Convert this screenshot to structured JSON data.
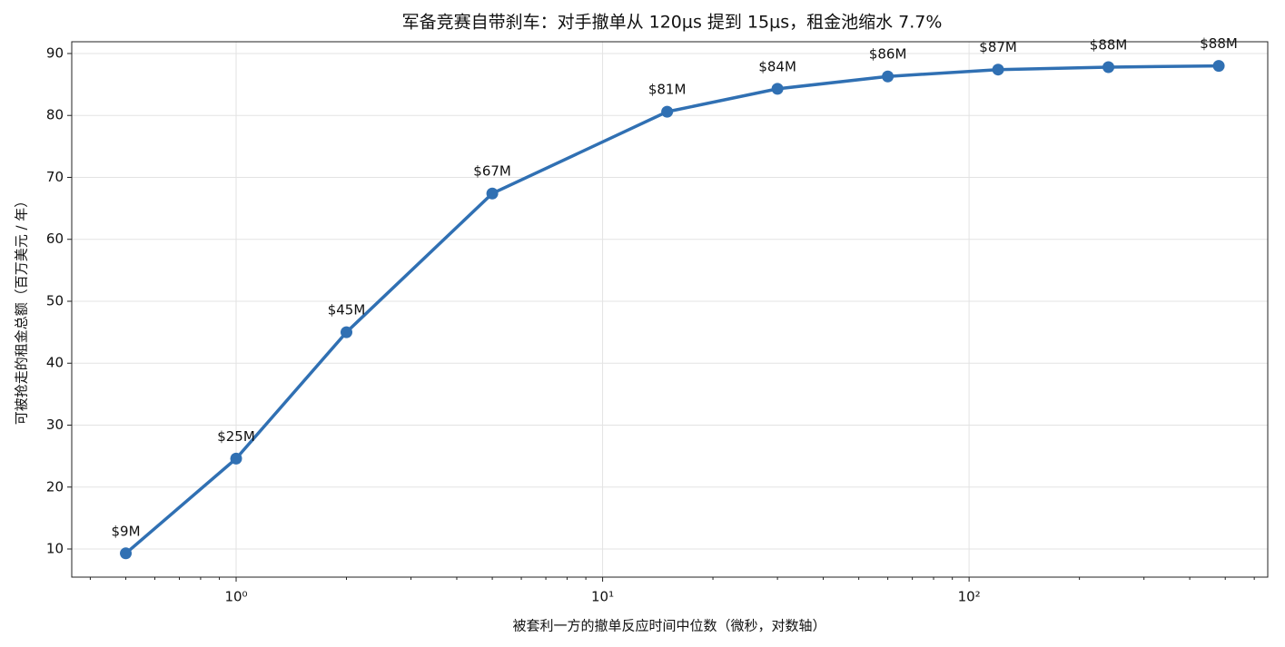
{
  "chart_data": {
    "type": "line",
    "title": "军备竞赛自带刹车：对手撤单从 120μs 提到 15μs，租金池缩水 7.7%",
    "x_label": "被套利一方的撤单反应时间中位数（微秒，对数轴）",
    "y_label": "可被抢走的租金总额（百万美元 / 年）",
    "x": [
      0.5,
      1,
      2,
      5,
      15,
      30,
      60,
      120,
      240,
      480
    ],
    "series": [
      {
        "color": "#3070b3",
        "values": [
          9.3,
          24.6,
          45.0,
          67.4,
          80.6,
          84.3,
          86.3,
          87.4,
          87.8,
          88.0
        ],
        "value_labels": [
          "$9M",
          "$25M",
          "$45M",
          "$67M",
          "$81M",
          "$84M",
          "$86M",
          "$87M",
          "$88M",
          "$88M"
        ]
      }
    ],
    "xscale": "log",
    "xlim": [
      0.356,
      653
    ],
    "xticks": [
      {
        "value": 1,
        "label": "10⁰"
      },
      {
        "value": 10,
        "label": "10¹"
      },
      {
        "value": 100,
        "label": "10²"
      }
    ],
    "xminorticks": [
      0.4,
      0.5,
      0.6,
      0.7,
      0.8,
      0.9,
      2,
      3,
      4,
      5,
      6,
      7,
      8,
      9,
      20,
      30,
      40,
      50,
      60,
      70,
      80,
      90,
      200,
      300,
      400,
      500,
      600
    ],
    "ylim": [
      5.46,
      91.9
    ],
    "yticks": [
      10,
      20,
      30,
      40,
      50,
      60,
      70,
      80,
      90
    ],
    "grid": true
  }
}
